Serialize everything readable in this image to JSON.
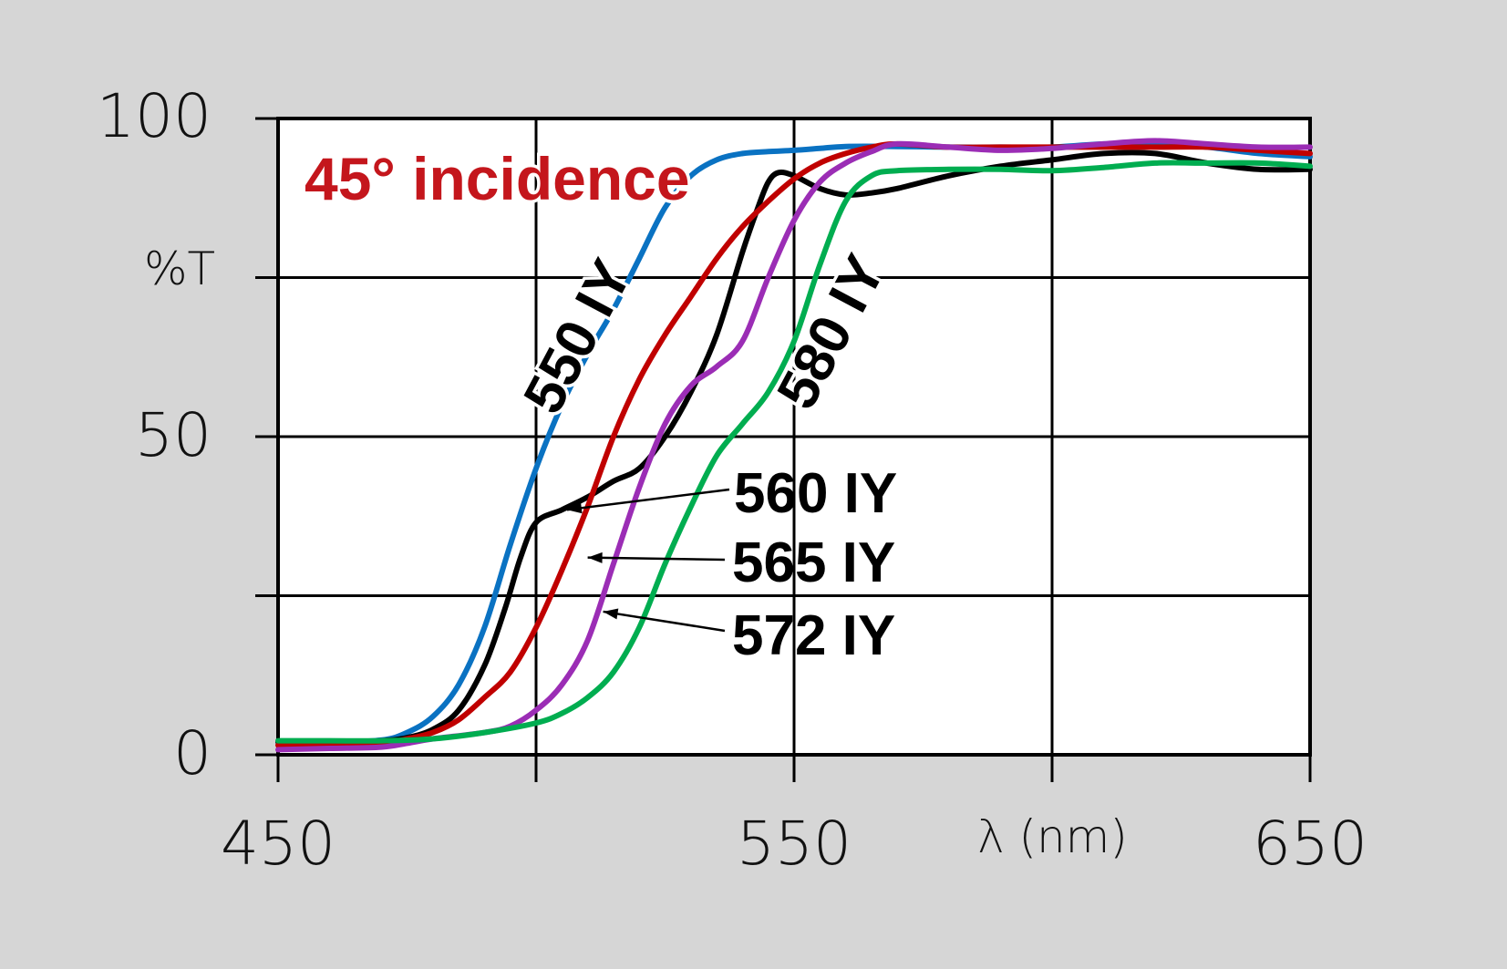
{
  "chart_data": {
    "type": "line",
    "title": "45° incidence",
    "xlabel": "λ (nm)",
    "ylabel": "%T",
    "xlim": [
      450,
      650
    ],
    "ylim": [
      0,
      100
    ],
    "x_ticks": [
      "450",
      "550",
      "650"
    ],
    "y_ticks": [
      "0",
      "50",
      "100"
    ],
    "x_grid": [
      450,
      500,
      550,
      600,
      650
    ],
    "y_grid": [
      0,
      25,
      50,
      75,
      100
    ],
    "grid": true,
    "colors": {
      "title": "#c4161c",
      "background": "#d6d6d6",
      "plot_area": "#ffffff"
    },
    "series": [
      {
        "name": "550 IY",
        "color": "#0a72c2",
        "points": [
          [
            450,
            2
          ],
          [
            460,
            2
          ],
          [
            470,
            2.3
          ],
          [
            475,
            3.5
          ],
          [
            480,
            6
          ],
          [
            485,
            11
          ],
          [
            490,
            20
          ],
          [
            495,
            33
          ],
          [
            500,
            45
          ],
          [
            505,
            55
          ],
          [
            510,
            63
          ],
          [
            515,
            70
          ],
          [
            520,
            78
          ],
          [
            525,
            86
          ],
          [
            530,
            91
          ],
          [
            535,
            93.5
          ],
          [
            540,
            94.5
          ],
          [
            545,
            94.8
          ],
          [
            550,
            95
          ],
          [
            555,
            95.3
          ],
          [
            560,
            95.6
          ],
          [
            570,
            95.6
          ],
          [
            580,
            95.5
          ],
          [
            590,
            95.5
          ],
          [
            600,
            95.5
          ],
          [
            610,
            96
          ],
          [
            620,
            96
          ],
          [
            630,
            95.5
          ],
          [
            640,
            94.5
          ],
          [
            650,
            94
          ]
        ]
      },
      {
        "name": "560 IY",
        "color": "#000000",
        "points": [
          [
            450,
            2
          ],
          [
            460,
            2
          ],
          [
            470,
            2.2
          ],
          [
            475,
            2.7
          ],
          [
            480,
            4
          ],
          [
            485,
            7
          ],
          [
            490,
            14
          ],
          [
            494,
            23
          ],
          [
            497,
            31
          ],
          [
            500,
            36.5
          ],
          [
            505,
            38.5
          ],
          [
            510,
            40.5
          ],
          [
            515,
            43
          ],
          [
            520,
            45
          ],
          [
            525,
            50
          ],
          [
            530,
            57
          ],
          [
            535,
            66
          ],
          [
            540,
            79
          ],
          [
            543,
            86
          ],
          [
            545,
            90
          ],
          [
            547,
            91.5
          ],
          [
            550,
            91
          ],
          [
            555,
            89
          ],
          [
            560,
            88
          ],
          [
            565,
            88.3
          ],
          [
            570,
            89
          ],
          [
            580,
            91
          ],
          [
            590,
            92.5
          ],
          [
            600,
            93.5
          ],
          [
            610,
            94.5
          ],
          [
            620,
            94.5
          ],
          [
            630,
            93
          ],
          [
            640,
            92
          ],
          [
            650,
            92
          ]
        ]
      },
      {
        "name": "565 IY",
        "color": "#c00000",
        "points": [
          [
            450,
            1.5
          ],
          [
            460,
            1.5
          ],
          [
            470,
            1.8
          ],
          [
            475,
            2.5
          ],
          [
            480,
            3.5
          ],
          [
            485,
            5.5
          ],
          [
            490,
            9
          ],
          [
            495,
            13
          ],
          [
            500,
            20
          ],
          [
            505,
            29
          ],
          [
            510,
            39
          ],
          [
            515,
            50
          ],
          [
            520,
            59
          ],
          [
            525,
            66
          ],
          [
            530,
            72
          ],
          [
            535,
            78
          ],
          [
            540,
            83
          ],
          [
            545,
            87
          ],
          [
            550,
            90.5
          ],
          [
            555,
            93
          ],
          [
            560,
            94.5
          ],
          [
            565,
            95.5
          ],
          [
            570,
            96
          ],
          [
            580,
            95.5
          ],
          [
            590,
            95.5
          ],
          [
            600,
            95.5
          ],
          [
            610,
            95.5
          ],
          [
            620,
            95.5
          ],
          [
            630,
            95.5
          ],
          [
            640,
            95
          ],
          [
            650,
            94.5
          ]
        ]
      },
      {
        "name": "572 IY",
        "color": "#9b2db5",
        "points": [
          [
            450,
            0.8
          ],
          [
            460,
            1
          ],
          [
            470,
            1.2
          ],
          [
            475,
            1.8
          ],
          [
            480,
            2.5
          ],
          [
            490,
            3.5
          ],
          [
            495,
            4.5
          ],
          [
            500,
            7
          ],
          [
            505,
            11
          ],
          [
            510,
            18
          ],
          [
            515,
            30
          ],
          [
            520,
            42
          ],
          [
            525,
            52
          ],
          [
            530,
            58
          ],
          [
            535,
            61
          ],
          [
            540,
            65
          ],
          [
            545,
            75
          ],
          [
            550,
            84
          ],
          [
            555,
            90
          ],
          [
            560,
            93
          ],
          [
            565,
            94.8
          ],
          [
            570,
            96
          ],
          [
            580,
            95.5
          ],
          [
            590,
            95
          ],
          [
            600,
            95.3
          ],
          [
            610,
            96
          ],
          [
            620,
            96.5
          ],
          [
            630,
            96
          ],
          [
            640,
            95.5
          ],
          [
            650,
            95.5
          ]
        ]
      },
      {
        "name": "580 IY",
        "color": "#00ad50",
        "points": [
          [
            450,
            2.2
          ],
          [
            460,
            2.2
          ],
          [
            470,
            2.2
          ],
          [
            480,
            2.5
          ],
          [
            490,
            3.5
          ],
          [
            500,
            5
          ],
          [
            505,
            6.5
          ],
          [
            510,
            9
          ],
          [
            515,
            13
          ],
          [
            520,
            20
          ],
          [
            525,
            30
          ],
          [
            530,
            39
          ],
          [
            535,
            47
          ],
          [
            540,
            52
          ],
          [
            545,
            57
          ],
          [
            550,
            65
          ],
          [
            555,
            77
          ],
          [
            560,
            87
          ],
          [
            565,
            91
          ],
          [
            570,
            91.8
          ],
          [
            580,
            92
          ],
          [
            590,
            92
          ],
          [
            600,
            91.8
          ],
          [
            610,
            92.3
          ],
          [
            620,
            93
          ],
          [
            630,
            93
          ],
          [
            640,
            93
          ],
          [
            650,
            92.5
          ]
        ]
      }
    ],
    "annotations": [
      {
        "text": "550 IY",
        "rotated": true
      },
      {
        "text": "580 IY",
        "rotated": true
      },
      {
        "text": "560 IY",
        "arrow_to": [
          506,
          38.5
        ]
      },
      {
        "text": "565 IY",
        "arrow_to": [
          510,
          31
        ]
      },
      {
        "text": "572 IY",
        "arrow_to": [
          513,
          22.5
        ]
      }
    ]
  }
}
